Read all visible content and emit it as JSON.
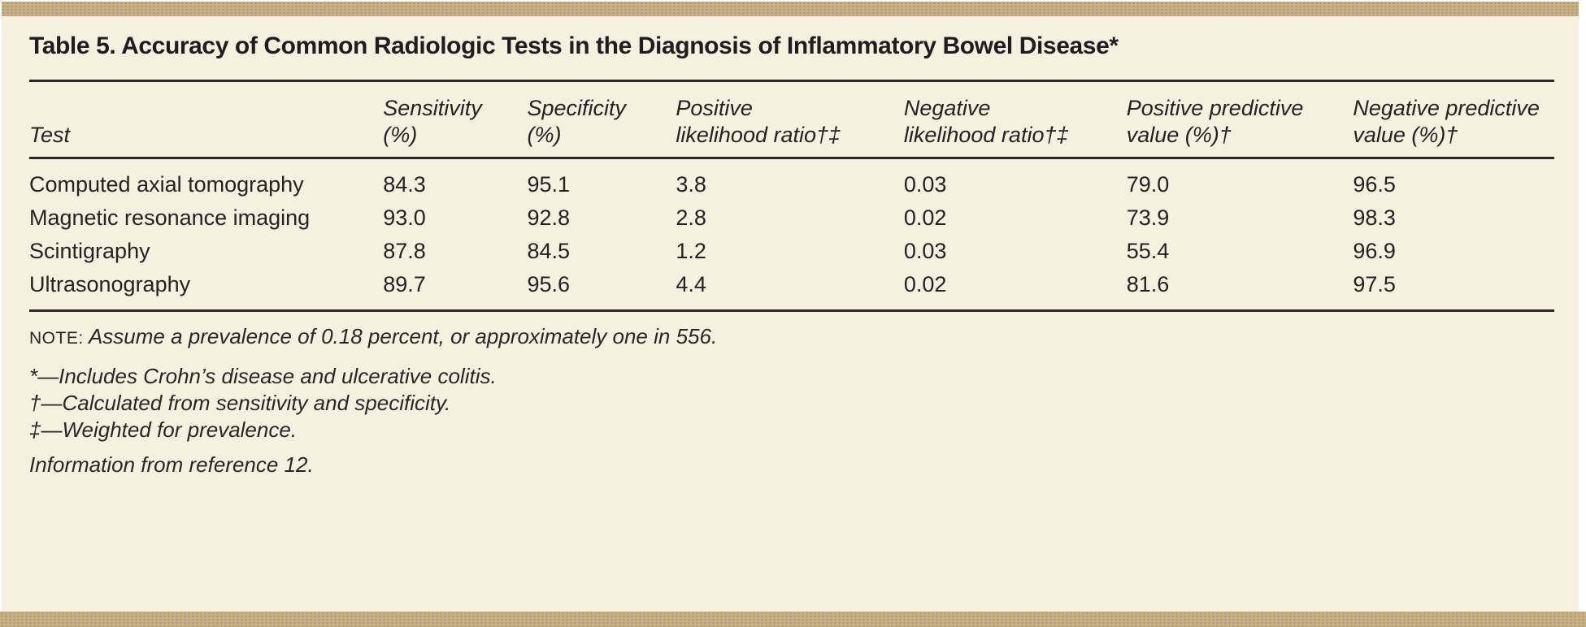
{
  "page": {
    "title": "Table 5. Accuracy of Common Radiologic Tests in the Diagnosis of Inflammatory Bowel Disease*"
  },
  "table": {
    "columns": [
      {
        "label": "Test"
      },
      {
        "label": "Sensitivity\n(%)"
      },
      {
        "label": "Specificity\n(%)"
      },
      {
        "label": "Positive\nlikelihood ratio†‡"
      },
      {
        "label": "Negative\nlikelihood ratio†‡"
      },
      {
        "label": "Positive predictive\nvalue (%)†"
      },
      {
        "label": "Negative predictive\nvalue (%)†"
      }
    ],
    "rows": [
      {
        "cells": [
          "Computed axial tomography",
          "84.3",
          "95.1",
          "3.8",
          "0.03",
          "79.0",
          "96.5"
        ]
      },
      {
        "cells": [
          "Magnetic resonance imaging",
          "93.0",
          "92.8",
          "2.8",
          "0.02",
          "73.9",
          "98.3"
        ]
      },
      {
        "cells": [
          "Scintigraphy",
          "87.8",
          "84.5",
          "1.2",
          "0.03",
          "55.4",
          "96.9"
        ]
      },
      {
        "cells": [
          "Ultrasonography",
          "89.7",
          "95.6",
          "4.4",
          "0.02",
          "81.6",
          "97.5"
        ]
      }
    ]
  },
  "footnotes": {
    "note_label": "NOTE:",
    "note_text": "Assume a prevalence of 0.18 percent, or approximately one in 556.",
    "asterisk": "*—Includes Crohn’s disease and ulcerative colitis.",
    "dagger": "†—Calculated from sensitivity and specificity.",
    "double_dagger": "‡—Weighted for prevalence.",
    "source": "Information from reference 12."
  },
  "colors": {
    "background": "#f5f0e0",
    "band": "#c9b083",
    "rule": "#2b2725",
    "text": "#26221f",
    "page_edge": "#ffffff"
  }
}
